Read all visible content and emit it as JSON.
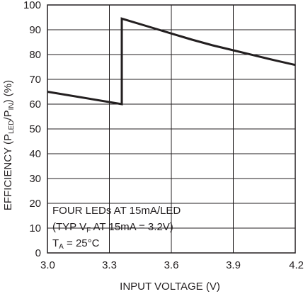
{
  "chart_data": {
    "type": "line",
    "title": "",
    "xlabel": "INPUT VOLTAGE (V)",
    "ylabel": {
      "prefix": "EFFICIENCY (P",
      "sub1": "LED",
      "mid": "/P",
      "sub2": "IN",
      "suffix": ") (%)"
    },
    "xlim": [
      3.0,
      4.2
    ],
    "ylim": [
      0,
      100
    ],
    "x_ticks": [
      3.0,
      3.3,
      3.6,
      3.9,
      4.2
    ],
    "x_tick_labels": [
      "3.0",
      "3.3",
      "3.6",
      "3.9",
      "4.2"
    ],
    "y_ticks": [
      0,
      10,
      20,
      30,
      40,
      50,
      60,
      70,
      80,
      90,
      100
    ],
    "y_tick_labels": [
      "0",
      "10",
      "20",
      "30",
      "40",
      "50",
      "60",
      "70",
      "80",
      "90",
      "100"
    ],
    "grid": true,
    "series": [
      {
        "x": [
          3.0,
          3.36,
          3.36,
          3.5,
          3.6,
          3.7,
          3.8,
          3.9,
          4.0,
          4.1,
          4.2
        ],
        "y": [
          65,
          60,
          94.5,
          91,
          88.5,
          86,
          83.7,
          81.7,
          79.7,
          77.7,
          75.8
        ]
      }
    ],
    "annotation": {
      "line1": "FOUR LEDs AT 15mA/LED",
      "line2": {
        "prefix": "(TYP V",
        "sub": "F",
        "suffix": " AT 15mA = 3.2V)"
      },
      "line3": {
        "prefix": "T",
        "sub": "A",
        "suffix": " = 25°C"
      }
    }
  }
}
